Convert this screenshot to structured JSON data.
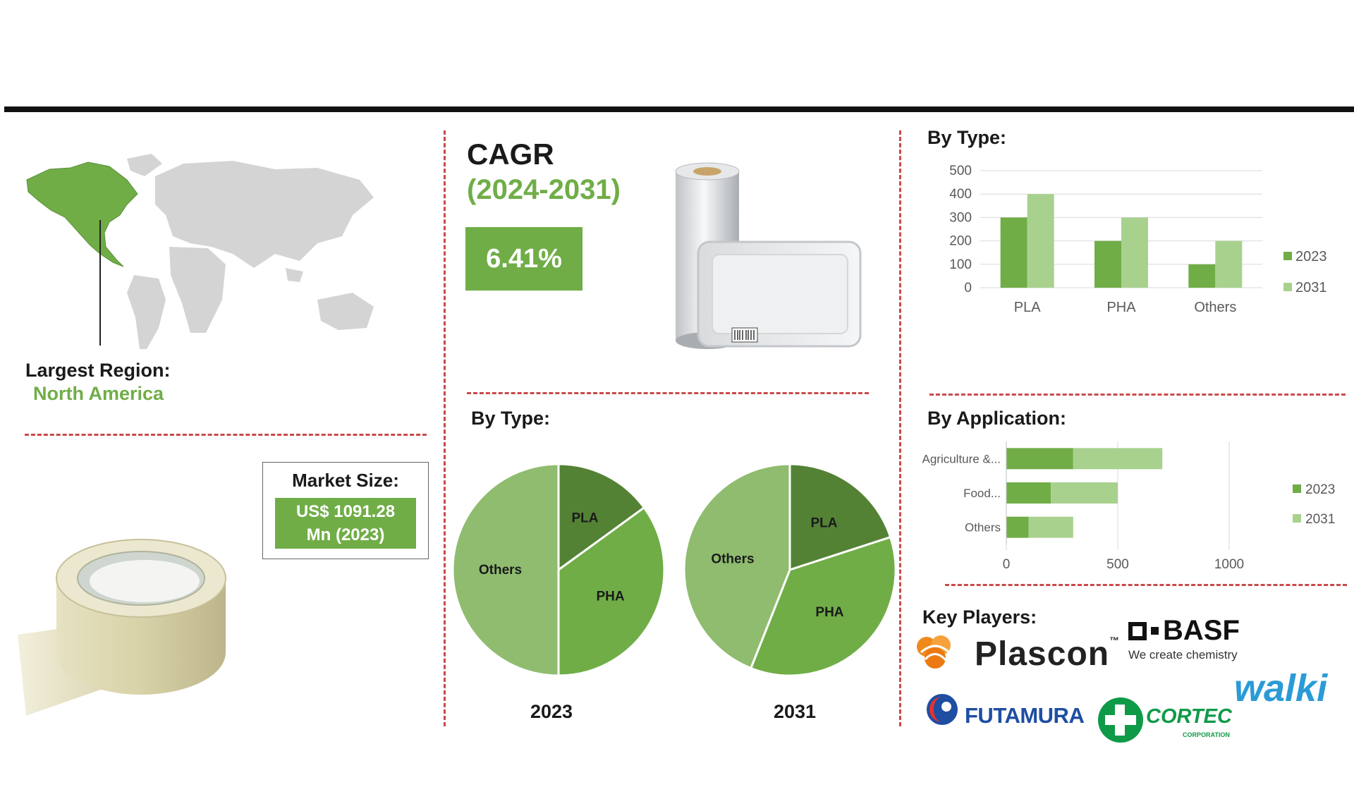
{
  "region": {
    "heading": "Largest Region:",
    "value": "North America"
  },
  "market_size": {
    "heading": "Market Size:",
    "value_line1": "US$ 1091.28",
    "value_line2": "Mn (2023)"
  },
  "cagr": {
    "heading": "CAGR",
    "period": "(2024-2031)",
    "value": "6.41%"
  },
  "pie_section": {
    "heading": "By Type:",
    "label_2023": "2023",
    "label_2031": "2031"
  },
  "bar_section": {
    "heading": "By Type:"
  },
  "app_section": {
    "heading": "By Application:"
  },
  "key_players": {
    "heading": "Key Players:",
    "plascon": "Plascon",
    "plascon_tm": "™",
    "basf": "BASF",
    "basf_tagline": "We create chemistry",
    "walki": "walki",
    "futamura": "FUTAMURA",
    "cortec": "CORTEC",
    "cortec_sub": "CORPORATION"
  },
  "colors": {
    "dark_green": "#548235",
    "mid_green": "#70ad47",
    "light_green": "#a9d18e",
    "pie_light": "#8fbc6f",
    "divider": "#c94a4a"
  },
  "chart_data": [
    {
      "type": "bar",
      "title": "By Type:",
      "categories": [
        "PLA",
        "PHA",
        "Others"
      ],
      "series": [
        {
          "name": "2023",
          "values": [
            300,
            200,
            100
          ]
        },
        {
          "name": "2031",
          "values": [
            400,
            300,
            200
          ]
        }
      ],
      "ylim": [
        0,
        500
      ],
      "yticks": [
        0,
        100,
        200,
        300,
        400,
        500
      ],
      "grid": true,
      "legend": "right"
    },
    {
      "type": "bar",
      "orientation": "horizontal",
      "stacked": true,
      "title": "By Application:",
      "categories": [
        "Agriculture &...",
        "Food...",
        "Others"
      ],
      "series": [
        {
          "name": "2023",
          "values": [
            300,
            200,
            100
          ]
        },
        {
          "name": "2031",
          "values": [
            400,
            300,
            200
          ]
        }
      ],
      "xlim": [
        0,
        1000
      ],
      "xticks": [
        0,
        500,
        1000
      ],
      "grid": true,
      "legend": "right"
    },
    {
      "type": "pie",
      "title": "2023",
      "categories": [
        "PLA",
        "PHA",
        "Others"
      ],
      "values": [
        15,
        35,
        50
      ]
    },
    {
      "type": "pie",
      "title": "2031",
      "categories": [
        "PLA",
        "PHA",
        "Others"
      ],
      "values": [
        20,
        36,
        44
      ]
    }
  ]
}
